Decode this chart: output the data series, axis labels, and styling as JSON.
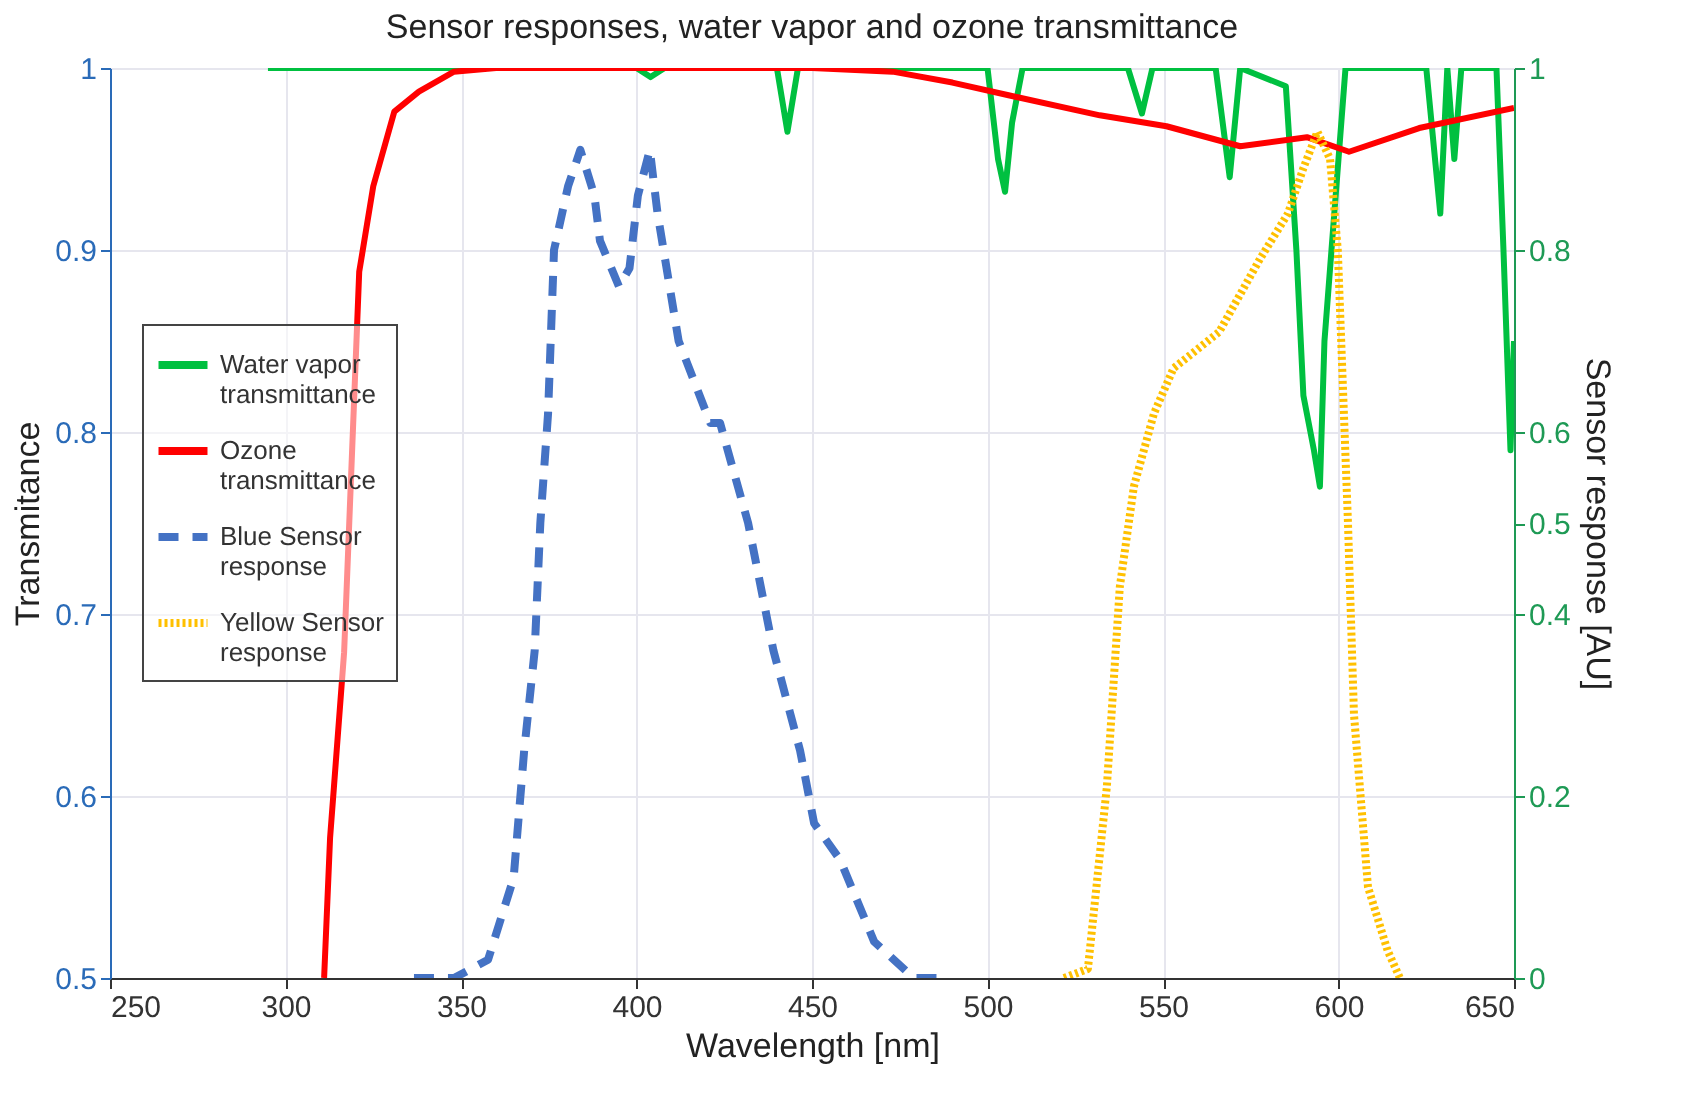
{
  "chart_data": {
    "type": "line",
    "title": "Sensor responses, water vapor and ozone transmittance",
    "xlabel": "Wavelength [nm]",
    "ylabel": "Transmitance",
    "y2label": "Sensor response [AU]",
    "xlim": [
      250,
      650
    ],
    "xticks": [
      250,
      300,
      350,
      400,
      450,
      500,
      550,
      600,
      650
    ],
    "ylim": [
      0.5,
      1
    ],
    "yticks": [
      0.5,
      0.6,
      0.7,
      0.8,
      0.9,
      1
    ],
    "y2lim": [
      0,
      1
    ],
    "y2ticks": [
      0,
      0.2,
      0.4,
      0.5,
      0.6,
      0.8,
      1
    ],
    "grid": true,
    "legend": "left",
    "marker": "none",
    "series": [
      {
        "name": "Water vapor transmittance",
        "color": "#00c040",
        "line_style": "solid",
        "x": [
          295,
          400,
          404,
          408,
          440,
          443,
          446,
          500,
          503,
          505,
          507,
          510,
          540,
          544,
          547,
          565,
          569,
          572,
          585,
          588,
          590,
          592,
          593,
          594.7,
          596,
          598,
          600,
          602,
          625,
          629,
          631,
          633,
          635,
          645,
          647,
          649,
          650
        ],
        "values": [
          1,
          1,
          0.995,
          1,
          1,
          0.965,
          1,
          1,
          0.95,
          0.932,
          0.97,
          1,
          1,
          0.975,
          1,
          1,
          0.94,
          1,
          0.99,
          0.9,
          0.82,
          0.8,
          0.79,
          0.77,
          0.85,
          0.9,
          0.95,
          1,
          1,
          0.92,
          1,
          0.95,
          1,
          1,
          0.9,
          0.79,
          0.85
        ]
      },
      {
        "name": "Ozone transmittance",
        "color": "#ff0000",
        "line_style": "solid",
        "x": [
          311,
          312.7,
          313.8,
          316.7,
          321,
          325,
          331,
          338,
          348,
          360,
          450,
          473,
          490,
          506,
          532,
          551,
          572,
          591,
          603,
          623,
          650
        ],
        "values": [
          0.5,
          0.577,
          0.605,
          0.679,
          0.888,
          0.935,
          0.976,
          0.987,
          0.998,
          1,
          1,
          0.998,
          0.992,
          0.985,
          0.974,
          0.968,
          0.957,
          0.962,
          0.954,
          0.967,
          0.978
        ]
      },
      {
        "name": "Blue Sensor response",
        "color": "#4472c4",
        "line_style": "dashed",
        "axis": "y2",
        "x": [
          336.6,
          348,
          357.7,
          365,
          368,
          371,
          372.6,
          374.8,
          376.5,
          380.5,
          384,
          388,
          389.6,
          395,
          398,
          400.4,
          403.8,
          406,
          412,
          421,
          423.8,
          431.8,
          439,
          446.6,
          450.6,
          458,
          467.7,
          479,
          486.5
        ],
        "values": [
          0,
          0,
          0.02,
          0.11,
          0.25,
          0.36,
          0.5,
          0.62,
          0.8,
          0.87,
          0.91,
          0.86,
          0.81,
          0.76,
          0.78,
          0.86,
          0.91,
          0.84,
          0.7,
          0.61,
          0.61,
          0.5,
          0.36,
          0.25,
          0.17,
          0.13,
          0.04,
          0,
          0
        ]
      },
      {
        "name": "Yellow Sensor response",
        "color": "#ffc000",
        "line_style": "dotted",
        "axis": "y2",
        "x": [
          521.8,
          528.6,
          534,
          537.7,
          541.7,
          547.4,
          553,
          566,
          577.6,
          585.6,
          590,
          594,
          597.6,
          599.8,
          602.7,
          604.4,
          608.4,
          614,
          617.5
        ],
        "values": [
          0,
          0.01,
          0.21,
          0.43,
          0.54,
          0.62,
          0.67,
          0.71,
          0.79,
          0.84,
          0.89,
          0.93,
          0.9,
          0.8,
          0.5,
          0.29,
          0.1,
          0.03,
          0
        ]
      }
    ]
  }
}
